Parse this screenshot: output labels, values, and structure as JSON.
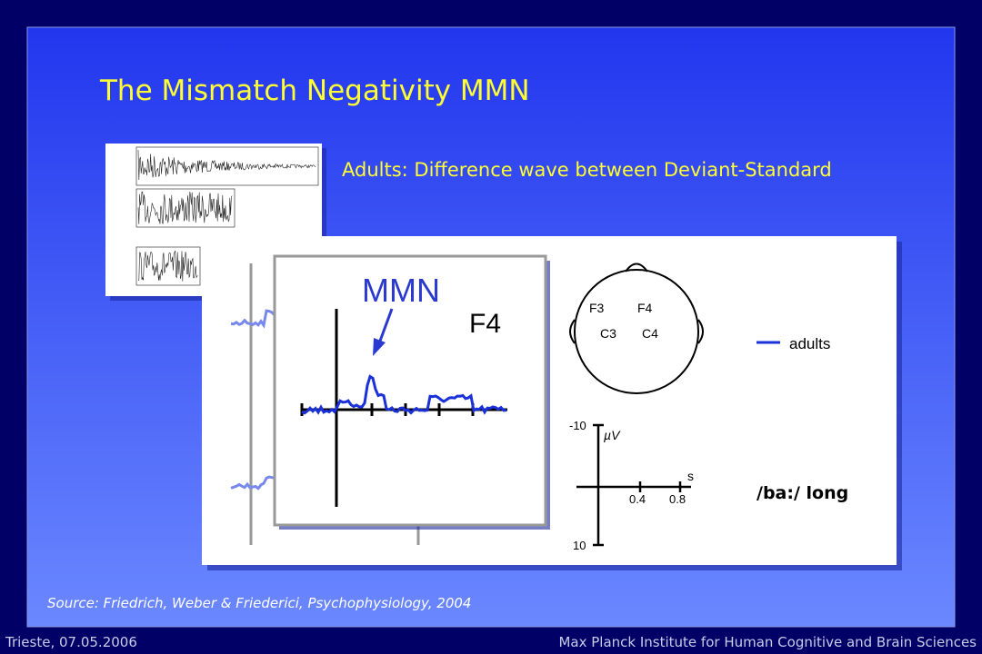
{
  "title": "The Mismatch Negativity MMN",
  "description": "Adults: Difference wave between Deviant-Standard",
  "figure": {
    "inset_label": "MMN",
    "electrode": "F4",
    "scalp_electrodes": [
      "F3",
      "F4",
      "C3",
      "C4"
    ],
    "legend": "adults",
    "scale": {
      "y_top": "-10",
      "y_unit": "µV",
      "x_unit": "s",
      "x_ticks": [
        "0.4",
        "0.8"
      ],
      "y_bottom": "10"
    },
    "condition": "/ba:/ long"
  },
  "source": "Source: Friedrich, Weber & Friederici, Psychophysiology, 2004",
  "footer": {
    "left": "Trieste, 07.05.2006",
    "right": "Max Planck Institute for Human Cognitive and Brain Sciences"
  }
}
